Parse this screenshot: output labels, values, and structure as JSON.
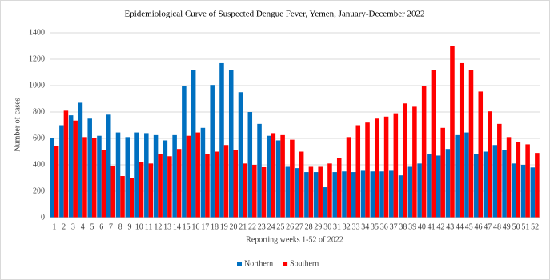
{
  "chart_data": {
    "type": "bar",
    "title": "Epidemiological  Curve of Suspected Dengue Fever, Yemen, January-December 2022",
    "x_label": "Reporting weeks 1-52 of 2022",
    "y_label": "Number of cases",
    "categories": [
      "1",
      "2",
      "3",
      "4",
      "5",
      "6",
      "7",
      "8",
      "9",
      "10",
      "11",
      "12",
      "13",
      "14",
      "15",
      "16",
      "17",
      "18",
      "19",
      "20",
      "21",
      "22",
      "23",
      "24",
      "25",
      "26",
      "27",
      "28",
      "29",
      "30",
      "31",
      "32",
      "33",
      "34",
      "35",
      "36",
      "37",
      "38",
      "39",
      "40",
      "41",
      "42",
      "43",
      "44",
      "45",
      "46",
      "47",
      "48",
      "49",
      "50",
      "51",
      "52"
    ],
    "series": [
      {
        "name": "Northern",
        "color": "#0070c0",
        "values": [
          600,
          700,
          775,
          870,
          750,
          620,
          780,
          645,
          610,
          645,
          640,
          625,
          585,
          625,
          1000,
          1120,
          680,
          1005,
          1170,
          1120,
          950,
          800,
          710,
          620,
          585,
          385,
          375,
          345,
          345,
          230,
          345,
          350,
          345,
          355,
          350,
          350,
          355,
          320,
          385,
          410,
          480,
          470,
          520,
          625,
          645,
          480,
          500,
          550,
          515,
          410,
          400,
          380
        ]
      },
      {
        "name": "Southern",
        "color": "#ff0000",
        "values": [
          540,
          810,
          735,
          610,
          600,
          515,
          390,
          315,
          300,
          420,
          410,
          480,
          465,
          520,
          620,
          645,
          480,
          500,
          550,
          515,
          410,
          400,
          382,
          640,
          625,
          590,
          500,
          385,
          385,
          410,
          450,
          610,
          700,
          720,
          750,
          765,
          790,
          865,
          840,
          1000,
          1120,
          680,
          1300,
          1170,
          1120,
          955,
          805,
          710,
          610,
          575,
          555,
          490
        ]
      }
    ],
    "ylim": [
      0,
      1400
    ],
    "yticks": [
      0,
      200,
      400,
      600,
      800,
      1000,
      1200,
      1400
    ],
    "grid": true,
    "legend": "bottom"
  }
}
